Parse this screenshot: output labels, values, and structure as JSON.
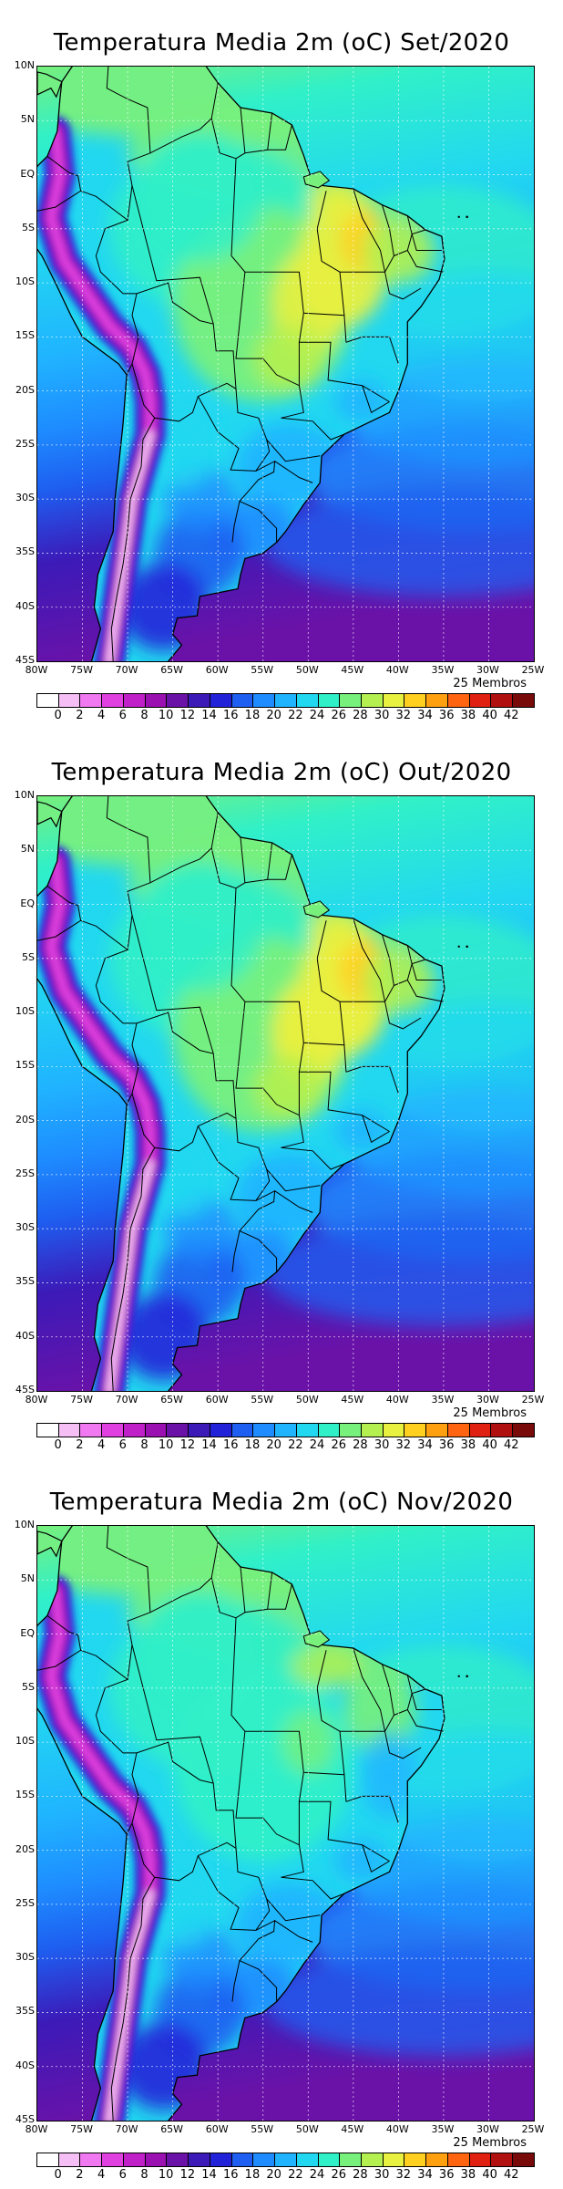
{
  "panels": [
    {
      "title": "Temperatura Media 2m (oC) Set/2020",
      "month": "Set"
    },
    {
      "title": "Temperatura Media 2m (oC) Out/2020",
      "month": "Out"
    },
    {
      "title": "Temperatura Media 2m (oC) Nov/2020",
      "month": "Nov"
    }
  ],
  "lat_labels": [
    "10N",
    "5N",
    "EQ",
    "5S",
    "10S",
    "15S",
    "20S",
    "25S",
    "30S",
    "35S",
    "40S",
    "45S"
  ],
  "lon_labels": [
    "80W",
    "75W",
    "70W",
    "65W",
    "60W",
    "55W",
    "50W",
    "45W",
    "40W",
    "35W",
    "30W",
    "25W"
  ],
  "members_label": "25 Membros",
  "colorbar": {
    "labels": [
      "0",
      "2",
      "4",
      "6",
      "8",
      "10",
      "12",
      "14",
      "16",
      "18",
      "20",
      "22",
      "24",
      "26",
      "28",
      "30",
      "32",
      "34",
      "36",
      "38",
      "40",
      "42"
    ],
    "colors": [
      "#ffffff",
      "#f5bff5",
      "#f078f0",
      "#e040e0",
      "#c020c8",
      "#9a10b0",
      "#6a12a8",
      "#3c1ab8",
      "#2222d8",
      "#1e5ef0",
      "#1e8cff",
      "#20b4ff",
      "#22d8f0",
      "#30f0c8",
      "#78f07c",
      "#b4f050",
      "#e8f040",
      "#ffd020",
      "#ffa010",
      "#ff6410",
      "#e02010",
      "#b01010",
      "#780a0a"
    ]
  }
}
